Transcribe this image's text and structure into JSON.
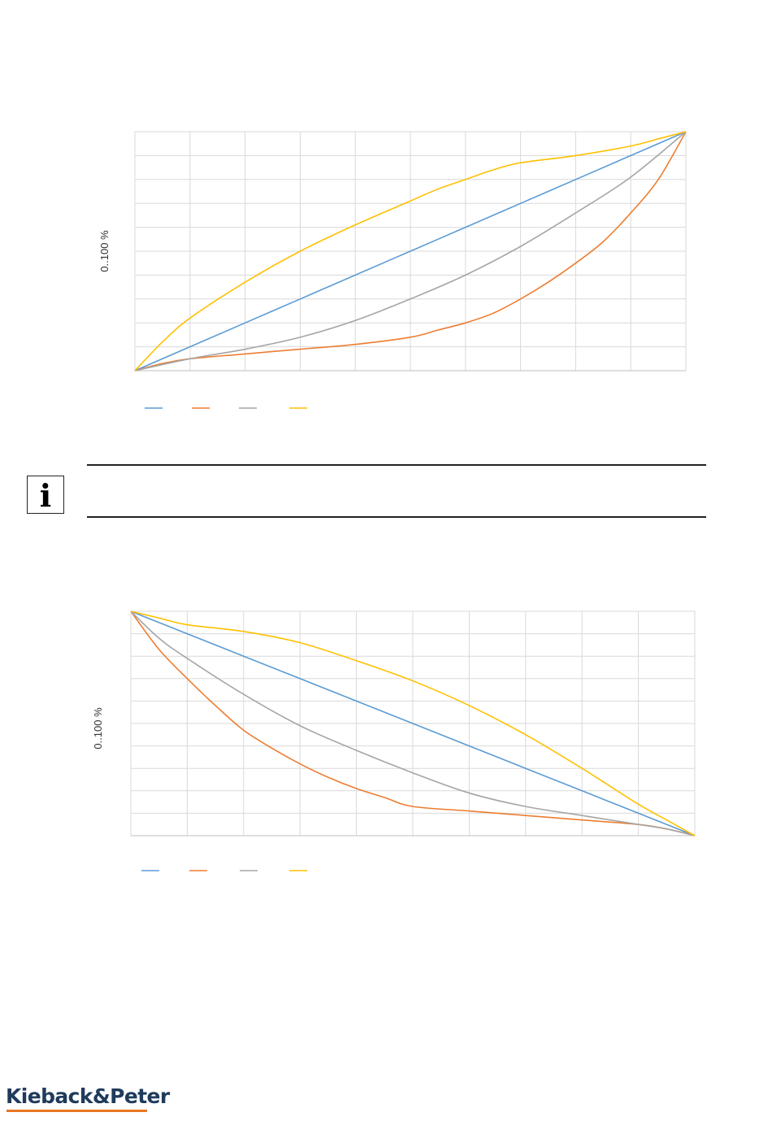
{
  "chart_data": [
    {
      "type": "line",
      "title": "",
      "xlabel": "",
      "ylabel": "0..100 %",
      "xlim": [
        0,
        100
      ],
      "ylim": [
        0,
        100
      ],
      "grid": true,
      "x_gridlines": 10,
      "y_gridlines": 10,
      "legend_placement": "bottom-left",
      "series": [
        {
          "color": "#5b9bd5",
          "x": [
            0,
            10,
            20,
            30,
            40,
            50,
            60,
            70,
            80,
            90,
            100
          ],
          "y": [
            0,
            10,
            20,
            30,
            40,
            50,
            60,
            70,
            80,
            90,
            100
          ]
        },
        {
          "color": "#ed7d31",
          "x": [
            0,
            5,
            10,
            20,
            30,
            40,
            50,
            55,
            60,
            65,
            70,
            75,
            80,
            85,
            90,
            95,
            100
          ],
          "y": [
            0,
            3,
            5,
            7,
            9,
            11,
            14,
            17,
            20,
            24,
            30,
            37,
            45,
            54,
            66,
            80,
            100
          ]
        },
        {
          "color": "#a5a5a5",
          "x": [
            0,
            10,
            20,
            30,
            40,
            50,
            60,
            70,
            80,
            90,
            100
          ],
          "y": [
            0,
            5,
            9,
            14,
            21,
            30,
            40,
            52,
            66,
            81,
            100
          ]
        },
        {
          "color": "#ffc000",
          "x": [
            0,
            5,
            10,
            20,
            30,
            40,
            50,
            55,
            60,
            65,
            70,
            80,
            90,
            95,
            100
          ],
          "y": [
            0,
            12,
            22,
            37,
            50,
            61,
            71,
            76,
            80,
            84,
            87,
            90,
            94,
            97,
            100
          ]
        }
      ]
    },
    {
      "type": "line",
      "title": "",
      "xlabel": "",
      "ylabel": "0..100 %",
      "xlim": [
        0,
        100
      ],
      "ylim": [
        0,
        100
      ],
      "grid": true,
      "x_gridlines": 10,
      "y_gridlines": 10,
      "legend_placement": "bottom-left",
      "series": [
        {
          "color": "#5b9bd5",
          "x": [
            0,
            10,
            20,
            30,
            40,
            50,
            60,
            70,
            80,
            90,
            100
          ],
          "y": [
            100,
            90,
            80,
            70,
            60,
            50,
            40,
            30,
            20,
            10,
            0
          ]
        },
        {
          "color": "#ed7d31",
          "x": [
            0,
            5,
            10,
            15,
            20,
            25,
            30,
            35,
            40,
            45,
            50,
            60,
            70,
            80,
            90,
            95,
            100
          ],
          "y": [
            100,
            83,
            70,
            58,
            47,
            39,
            32,
            26,
            21,
            17,
            13,
            11,
            9,
            7,
            5,
            3,
            0
          ]
        },
        {
          "color": "#a5a5a5",
          "x": [
            0,
            5,
            10,
            20,
            30,
            40,
            50,
            60,
            70,
            80,
            90,
            95,
            100
          ],
          "y": [
            100,
            88,
            79,
            63,
            49,
            38,
            28,
            19,
            13,
            9,
            5,
            3,
            0
          ]
        },
        {
          "color": "#ffc000",
          "x": [
            0,
            5,
            10,
            20,
            30,
            40,
            50,
            60,
            70,
            80,
            90,
            95,
            100
          ],
          "y": [
            100,
            97,
            94,
            91,
            86,
            78,
            69,
            58,
            45,
            30,
            14,
            7,
            0
          ]
        }
      ]
    }
  ],
  "info_note": {
    "icon": "info-icon",
    "text": ""
  },
  "footer": {
    "logo_text": "Kieback&Peter",
    "accent_color": "#e87722",
    "brand_color": "#1f3b5c"
  }
}
